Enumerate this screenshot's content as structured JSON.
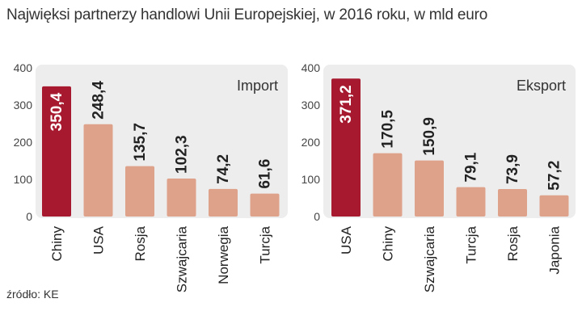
{
  "title": "Najwięksi partnerzy handlowi Unii Europejskiej, w 2016 roku, w mld euro",
  "source": "źródło: KE",
  "colors": {
    "highlight": "#a6192e",
    "bar": "#dea28b",
    "panel": "#ededed",
    "text": "#222222",
    "value_on_highlight": "#ffffff"
  },
  "chart_data": [
    {
      "type": "bar",
      "panel_label": "Import",
      "categories": [
        "Chiny",
        "USA",
        "Rosja",
        "Szwajcaria",
        "Norwegia",
        "Turcja"
      ],
      "values": [
        350.4,
        248.4,
        135.7,
        102.3,
        74.2,
        61.6
      ],
      "value_labels": [
        "350,4",
        "248,4",
        "135,7",
        "102,3",
        "74,2",
        "61,6"
      ],
      "highlight_index": 0,
      "yticks": [
        "0",
        "100",
        "200",
        "300",
        "400"
      ],
      "ylim": [
        0,
        400
      ],
      "grid": false
    },
    {
      "type": "bar",
      "panel_label": "Eksport",
      "categories": [
        "USA",
        "Chiny",
        "Szwajcaria",
        "Turcja",
        "Rosja",
        "Japonia"
      ],
      "values": [
        371.2,
        170.5,
        150.9,
        79.1,
        73.9,
        57.2
      ],
      "value_labels": [
        "371,2",
        "170,5",
        "150,9",
        "79,1",
        "73,9",
        "57,2"
      ],
      "highlight_index": 0,
      "yticks": [
        "0",
        "100",
        "200",
        "300",
        "400"
      ],
      "ylim": [
        0,
        400
      ],
      "grid": false
    }
  ]
}
